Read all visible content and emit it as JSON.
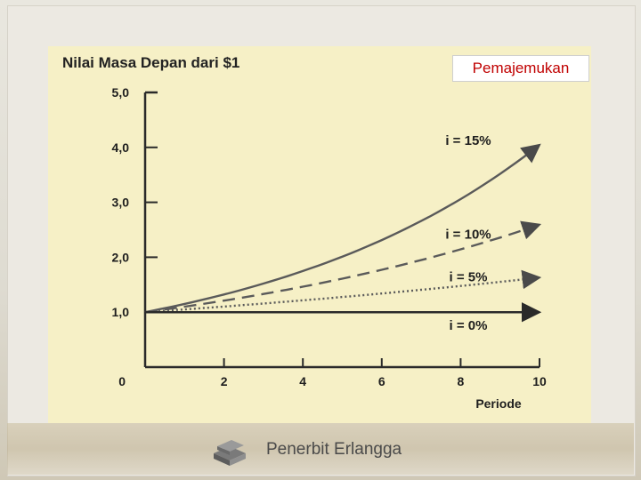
{
  "header": {
    "badge": "Pemajemukan"
  },
  "footer": {
    "publisher": "Penerbit Erlangga",
    "logo_icon": "book-stack-icon"
  },
  "colors": {
    "chart_background": "#f6f0c6",
    "line": "#5a5a5a",
    "axis": "#2a2a2a",
    "badge_text": "#c00000"
  },
  "chart_data": {
    "type": "line",
    "title": "Nilai Masa Depan dari $1",
    "xlabel": "Periode",
    "ylabel": "",
    "xlim": [
      0,
      10
    ],
    "ylim": [
      0,
      5
    ],
    "x_ticks": [
      0,
      2,
      4,
      6,
      8,
      10
    ],
    "y_ticks": [
      1,
      2,
      3,
      4,
      5
    ],
    "x_tick_labels": [
      "0",
      "2",
      "4",
      "6",
      "8",
      "10"
    ],
    "y_tick_labels": [
      "1,0",
      "2,0",
      "3,0",
      "4,0",
      "5,0"
    ],
    "grid": false,
    "series": [
      {
        "name": "i = 15%",
        "rate": 0.15,
        "style": "solid",
        "x": [
          0,
          1,
          2,
          3,
          4,
          5,
          6,
          7,
          8,
          9,
          10
        ],
        "values": [
          1.0,
          1.15,
          1.32,
          1.52,
          1.75,
          2.01,
          2.31,
          2.66,
          3.06,
          3.52,
          4.05
        ]
      },
      {
        "name": "i = 10%",
        "rate": 0.1,
        "style": "dashed",
        "x": [
          0,
          1,
          2,
          3,
          4,
          5,
          6,
          7,
          8,
          9,
          10
        ],
        "values": [
          1.0,
          1.1,
          1.21,
          1.33,
          1.46,
          1.61,
          1.77,
          1.95,
          2.14,
          2.36,
          2.59
        ]
      },
      {
        "name": "i = 5%",
        "rate": 0.05,
        "style": "dotted",
        "x": [
          0,
          1,
          2,
          3,
          4,
          5,
          6,
          7,
          8,
          9,
          10
        ],
        "values": [
          1.0,
          1.05,
          1.1,
          1.16,
          1.22,
          1.28,
          1.34,
          1.41,
          1.48,
          1.55,
          1.63
        ]
      },
      {
        "name": "i = 0%",
        "rate": 0.0,
        "style": "solid",
        "x": [
          0,
          1,
          2,
          3,
          4,
          5,
          6,
          7,
          8,
          9,
          10
        ],
        "values": [
          1.0,
          1.0,
          1.0,
          1.0,
          1.0,
          1.0,
          1.0,
          1.0,
          1.0,
          1.0,
          1.0
        ]
      }
    ]
  }
}
